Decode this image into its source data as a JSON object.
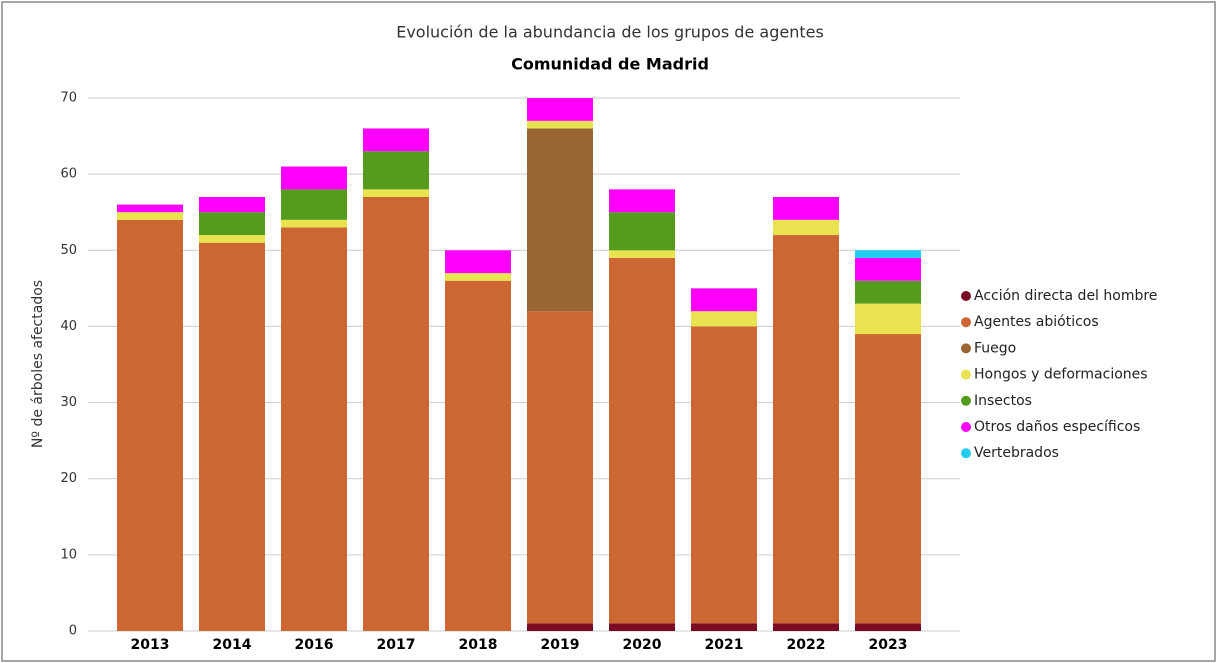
{
  "chart_data": {
    "type": "stacked_bar",
    "title": "Evolución de la abundancia de los grupos de agentes",
    "subtitle": "Comunidad de Madrid",
    "y_label": "Nº de árboles afectados",
    "categories": [
      "2013",
      "2014",
      "2016",
      "2017",
      "2018",
      "2019",
      "2020",
      "2021",
      "2022",
      "2023"
    ],
    "series": [
      {
        "name": "Acción directa del hombre",
        "color": "#7a0b22",
        "values": [
          0,
          0,
          0,
          0,
          0,
          1,
          1,
          1,
          1,
          1
        ]
      },
      {
        "name": "Agentes abióticos",
        "color": "#cc6633",
        "values": [
          54,
          51,
          53,
          57,
          46,
          41,
          48,
          39,
          51,
          38
        ]
      },
      {
        "name": "Fuego",
        "color": "#996633",
        "values": [
          0,
          0,
          0,
          0,
          0,
          24,
          0,
          0,
          0,
          0
        ]
      },
      {
        "name": "Hongos y deformaciones",
        "color": "#e8e34f",
        "values": [
          1,
          1,
          1,
          1,
          1,
          1,
          1,
          2,
          2,
          4
        ]
      },
      {
        "name": "Insectos",
        "color": "#559c1e",
        "values": [
          0,
          3,
          4,
          5,
          0,
          0,
          5,
          0,
          0,
          3
        ]
      },
      {
        "name": "Otros daños específicos",
        "color": "#ff00ff",
        "values": [
          1,
          2,
          3,
          3,
          3,
          3,
          3,
          3,
          3,
          3
        ]
      },
      {
        "name": "Vertebrados",
        "color": "#22ccee",
        "values": [
          0,
          0,
          0,
          0,
          0,
          0,
          0,
          0,
          0,
          1
        ]
      }
    ],
    "ylim": [
      0,
      70
    ],
    "yticks": [
      0,
      10,
      20,
      30,
      40,
      50,
      60,
      70
    ],
    "grid": true,
    "legend": "right"
  }
}
